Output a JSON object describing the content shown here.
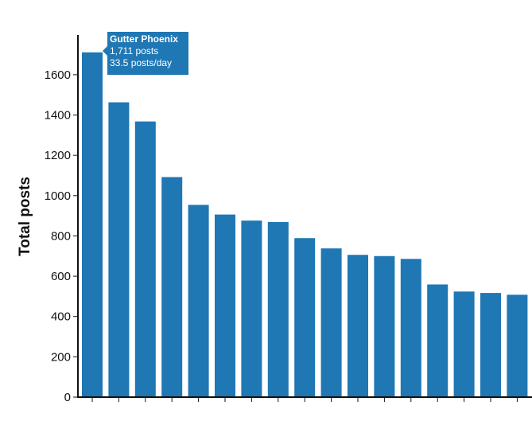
{
  "chart_data": {
    "type": "bar",
    "ylabel": "Total posts",
    "xlabel": "",
    "ylim": [
      0,
      1800
    ],
    "yticks": [
      0,
      200,
      400,
      600,
      800,
      1000,
      1200,
      1400,
      1600
    ],
    "values": [
      1711,
      1463,
      1368,
      1092,
      954,
      906,
      876,
      869,
      789,
      738,
      706,
      700,
      686,
      559,
      524,
      517,
      508
    ],
    "bar_color": "#1f77b4",
    "grid": false,
    "legend": false
  },
  "tooltip": {
    "name": "Gutter Phoenix",
    "posts": "1,711 posts",
    "rate": "33.5 posts/day",
    "color": "#1f77b4"
  }
}
